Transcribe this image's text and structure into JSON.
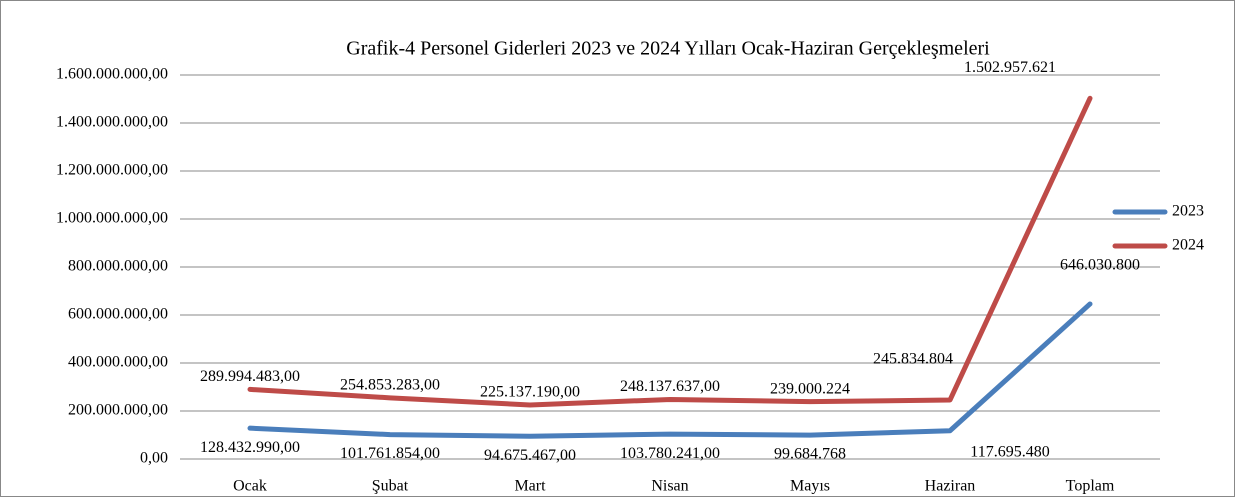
{
  "chart_data": {
    "type": "line",
    "title": "Grafik-4  Personel Giderleri 2023 ve 2024 Yılları Ocak-Haziran Gerçekleşmeleri",
    "categories": [
      "Ocak",
      "Şubat",
      "Mart",
      "Nisan",
      "Mayıs",
      "Haziran",
      "Toplam"
    ],
    "series": [
      {
        "name": "2023",
        "color": "#4a7ebb",
        "values": [
          128432990,
          101761854,
          94675467,
          103780241,
          99684768,
          117695480,
          646030800
        ],
        "value_labels": [
          "128.432.990,00",
          "101.761.854,00",
          "94.675.467,00",
          "103.780.241,00",
          "99.684.768",
          "117.695.480",
          "646.030.800"
        ]
      },
      {
        "name": "2024",
        "color": "#be4b48",
        "values": [
          289994483,
          254853283,
          225137190,
          248137637,
          239000224,
          245834804,
          1502957621
        ],
        "value_labels": [
          "289.994.483,00",
          "254.853.283,00",
          "225.137.190,00",
          "248.137.637,00",
          "239.000.224",
          "245.834.804",
          "1.502.957.621"
        ]
      }
    ],
    "ylim": [
      0,
      1600000000
    ],
    "yticks": [
      {
        "value": 0,
        "label": "0,00"
      },
      {
        "value": 200000000,
        "label": "200.000.000,00"
      },
      {
        "value": 400000000,
        "label": "400.000.000,00"
      },
      {
        "value": 600000000,
        "label": "600.000.000,00"
      },
      {
        "value": 800000000,
        "label": "800.000.000,00"
      },
      {
        "value": 1000000000,
        "label": "1.000.000.000,00"
      },
      {
        "value": 1200000000,
        "label": "1.200.000.000,00"
      },
      {
        "value": 1400000000,
        "label": "1.400.000.000,00"
      },
      {
        "value": 1600000000,
        "label": "1.600.000.000,00"
      }
    ],
    "grid": true,
    "legend": "right"
  }
}
